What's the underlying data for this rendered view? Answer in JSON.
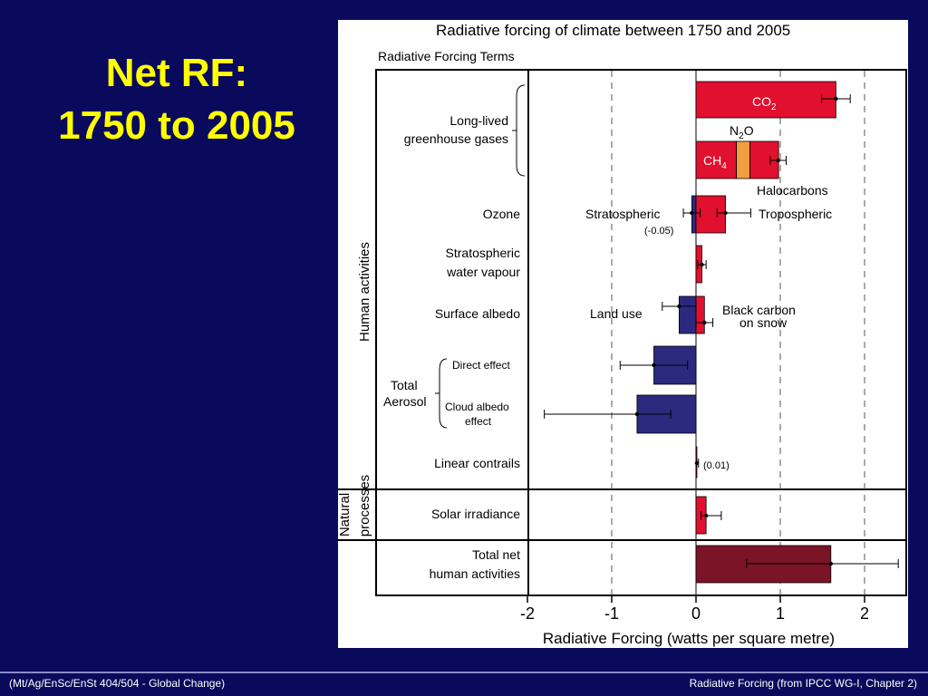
{
  "slide": {
    "title_line1": "Net RF:",
    "title_line2": "1750 to 2005",
    "footer_left": "(Mt/Ag/EnSc/EnSt 404/504 - Global Change)",
    "footer_right": "Radiative Forcing (from IPCC WG-I, Chapter 2)",
    "background_color": "#0a0a5c",
    "title_color": "#ffff00"
  },
  "chart_data": {
    "type": "bar",
    "orientation": "horizontal",
    "title": "Radiative forcing of climate between 1750 and 2005",
    "column_header": "Radiative Forcing Terms",
    "xlabel": "Radiative Forcing  (watts per square metre)",
    "xlim": [
      -2,
      2.5
    ],
    "xticks": [
      -2,
      -1,
      0,
      1,
      2
    ],
    "xtick_labels": [
      "-2",
      "-1",
      "0",
      "1",
      "2"
    ],
    "group_labels": {
      "human": "Human activities",
      "natural_line1": "Natural",
      "natural_line2": "processes"
    },
    "row_labels": {
      "longlived_1": "Long-lived",
      "longlived_2": "greenhouse gases",
      "ozone": "Ozone",
      "stratwv_1": "Stratospheric",
      "stratwv_2": "water vapour",
      "albedo": "Surface albedo",
      "aerosol_1": "Total",
      "aerosol_2": "Aerosol",
      "direct": "Direct effect",
      "cloud_1": "Cloud albedo",
      "cloud_2": "effect",
      "contrails": "Linear contrails",
      "solar": "Solar irradiance",
      "net_1": "Total net",
      "net_2": "human activities"
    },
    "annotations": {
      "co2_main": "CO",
      "co2_sub": "2",
      "ch4_main": "CH",
      "ch4_sub": "4",
      "n2o_a": "N",
      "n2o_sub": "2",
      "n2o_b": "O",
      "halocarbons": "Halocarbons",
      "stratospheric": "Stratospheric",
      "strat_value": "(-0.05)",
      "tropospheric": "Tropospheric",
      "land_use": "Land use",
      "black_carbon_1": "Black carbon",
      "black_carbon_2": "on snow",
      "contrails_value": "(0.01)"
    },
    "colors": {
      "positive": "#e0102e",
      "negative": "#2b2a7e",
      "n2o": "#f0a040",
      "total": "#7a1426"
    },
    "bars": [
      {
        "term": "CO2",
        "value": 1.66,
        "err_low": 1.49,
        "err_high": 1.83,
        "color": "positive"
      },
      {
        "term": "CH4",
        "value": 0.48,
        "err_low": null,
        "err_high": null,
        "color": "positive"
      },
      {
        "term": "N2O",
        "value": 0.16,
        "err_low": null,
        "err_high": null,
        "color": "n2o"
      },
      {
        "term": "Halocarbons",
        "value": 0.34,
        "err_low": 0.88,
        "err_high": 1.07,
        "color": "positive"
      },
      {
        "term": "Stratospheric ozone",
        "value": -0.05,
        "err_low": -0.15,
        "err_high": 0.05,
        "color": "negative"
      },
      {
        "term": "Tropospheric ozone",
        "value": 0.35,
        "err_low": 0.25,
        "err_high": 0.65,
        "color": "positive"
      },
      {
        "term": "Stratospheric water vapour",
        "value": 0.07,
        "err_low": 0.02,
        "err_high": 0.12,
        "color": "positive"
      },
      {
        "term": "Land use",
        "value": -0.2,
        "err_low": -0.4,
        "err_high": 0.0,
        "color": "negative"
      },
      {
        "term": "Black carbon on snow",
        "value": 0.1,
        "err_low": 0.0,
        "err_high": 0.2,
        "color": "positive"
      },
      {
        "term": "Aerosol direct effect",
        "value": -0.5,
        "err_low": -0.9,
        "err_high": -0.1,
        "color": "negative"
      },
      {
        "term": "Cloud albedo effect",
        "value": -0.7,
        "err_low": -1.8,
        "err_high": -0.3,
        "color": "negative"
      },
      {
        "term": "Linear contrails",
        "value": 0.01,
        "err_low": 0.003,
        "err_high": 0.03,
        "color": "positive"
      },
      {
        "term": "Solar irradiance",
        "value": 0.12,
        "err_low": 0.06,
        "err_high": 0.3,
        "color": "positive"
      },
      {
        "term": "Total net human activities",
        "value": 1.6,
        "err_low": 0.6,
        "err_high": 2.4,
        "color": "total"
      }
    ]
  }
}
